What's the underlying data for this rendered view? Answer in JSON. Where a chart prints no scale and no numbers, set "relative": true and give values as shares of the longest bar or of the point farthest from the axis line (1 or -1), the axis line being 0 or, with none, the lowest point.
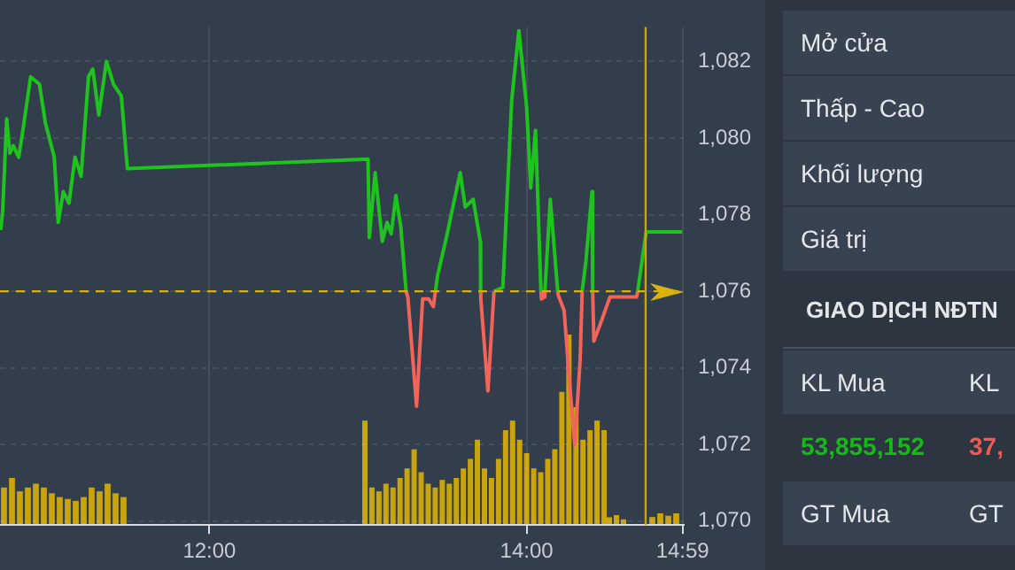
{
  "chart_data": [
    {
      "type": "line",
      "xlim": [
        10.68,
        14.99
      ],
      "ylim": [
        1069.9,
        1082.9
      ],
      "xticks": [
        {
          "value": 12,
          "label": "12:00"
        },
        {
          "value": 14,
          "label": "14:00"
        },
        {
          "value": 14.983,
          "label": "14:59"
        }
      ],
      "yticks": [
        {
          "value": 1070,
          "label": "1,070"
        },
        {
          "value": 1072,
          "label": "1,072"
        },
        {
          "value": 1074,
          "label": "1,074"
        },
        {
          "value": 1076,
          "label": "1,076"
        },
        {
          "value": 1078,
          "label": "1,078"
        },
        {
          "value": 1080,
          "label": "1,080"
        },
        {
          "value": 1082,
          "label": "1,082"
        }
      ],
      "grid": true,
      "legend": false,
      "marker": "none",
      "line_style": "solid",
      "ref_lines": [
        {
          "axis": "y",
          "value": 1076,
          "color": "#d9b20f",
          "line_style": "dashed"
        },
        {
          "axis": "x",
          "value": 14.75,
          "color": "#c9a418",
          "line_style": "solid"
        }
      ],
      "x": [
        10.685,
        10.697,
        10.722,
        10.742,
        10.764,
        10.798,
        10.828,
        10.873,
        10.929,
        10.966,
        11.022,
        11.047,
        11.079,
        11.115,
        11.153,
        11.191,
        11.238,
        11.265,
        11.303,
        11.351,
        11.396,
        11.445,
        11.483,
        13.0,
        13.008,
        13.045,
        13.09,
        13.12,
        13.146,
        13.176,
        13.206,
        13.24,
        13.251,
        13.306,
        13.344,
        13.382,
        13.412,
        13.425,
        13.438,
        13.494,
        13.581,
        13.613,
        13.663,
        13.708,
        13.71,
        13.711,
        13.756,
        13.794,
        13.85,
        13.906,
        13.951,
        14.0,
        14.026,
        14.056,
        14.09,
        14.093,
        14.112,
        14.115,
        14.149,
        14.196,
        14.199,
        14.236,
        14.273,
        14.303,
        14.337,
        14.35,
        14.374,
        14.412,
        14.416,
        14.424,
        14.469,
        14.525,
        14.693,
        14.7,
        14.753,
        14.98
      ],
      "series": [
        {
          "color": "#1ec31e",
          "values": [
            1077.6,
            1078.1,
            1080.5,
            1079.6,
            1079.8,
            1079.5,
            1080.3,
            1081.6,
            1081.4,
            1080.4,
            1079.5,
            1077.8,
            1078.6,
            1078.3,
            1079.5,
            1079.0,
            1081.6,
            1081.8,
            1080.6,
            1082.0,
            1081.4,
            1081.1,
            1079.2,
            1079.45,
            1077.4,
            1079.1,
            1077.3,
            1077.8,
            1077.5,
            1078.5,
            1077.7,
            1076,
            null,
            null,
            null,
            null,
            null,
            1076,
            1076.4,
            1077.4,
            1079.1,
            1078.2,
            1078.4,
            1077.3,
            1076,
            null,
            null,
            1076,
            1076.1,
            1081.0,
            1082.8,
            1080.8,
            1078.7,
            1080.2,
            1076,
            null,
            null,
            1076,
            1078.4,
            1076,
            null,
            null,
            null,
            null,
            null,
            1076,
            1076.8,
            1078.6,
            1076,
            null,
            null,
            null,
            null,
            1076,
            1077.55,
            1077.55
          ]
        },
        {
          "color": "#f2635a",
          "values": [
            null,
            null,
            null,
            null,
            null,
            null,
            null,
            null,
            null,
            null,
            null,
            null,
            null,
            null,
            null,
            null,
            null,
            null,
            null,
            null,
            null,
            null,
            null,
            null,
            null,
            null,
            null,
            null,
            null,
            null,
            null,
            1076,
            1075.85,
            1073.0,
            1075.8,
            1075.8,
            1075.6,
            1076,
            null,
            null,
            null,
            null,
            null,
            null,
            1076,
            1075.8,
            1073.4,
            1076,
            null,
            null,
            null,
            null,
            null,
            null,
            1076,
            1075.8,
            1075.85,
            1076,
            null,
            1076,
            1075.9,
            1075.5,
            1073.5,
            1072.0,
            1074.2,
            1076,
            null,
            null,
            1076,
            1074.7,
            1075.2,
            1075.85,
            1075.85,
            1076,
            null,
            null
          ]
        }
      ]
    },
    {
      "type": "bar",
      "relative": true,
      "tick_labels": false,
      "legend": false,
      "categories": [
        null,
        null,
        null,
        null,
        null,
        null,
        null,
        null,
        null,
        null,
        null,
        null,
        null,
        null,
        null,
        null
      ],
      "series": [
        {
          "color": "#c9a40c",
          "values": [
            0.8,
            1,
            0.72,
            0.8,
            0.88,
            0.8,
            0.68,
            0.6,
            0.56,
            0.52,
            0.6,
            0.8,
            0.72,
            0.88,
            0.68,
            0.6
          ]
        }
      ]
    },
    {
      "type": "bar",
      "relative": true,
      "tick_labels": false,
      "legend": false,
      "categories": [
        null,
        null,
        null,
        null,
        null,
        null,
        null,
        null,
        null,
        null,
        null,
        null,
        null,
        null,
        null,
        null,
        null,
        null,
        null,
        null,
        null,
        null,
        null,
        null,
        null,
        null,
        null,
        null,
        null,
        null,
        null,
        null,
        null,
        null,
        null
      ],
      "series": [
        {
          "color": "#c9a40c",
          "values": [
            0.55,
            0.2,
            0.18,
            0.22,
            0.2,
            0.25,
            0.3,
            0.4,
            0.28,
            0.22,
            0.2,
            0.24,
            0.22,
            0.25,
            0.3,
            0.35,
            0.45,
            0.3,
            0.25,
            0.35,
            0.5,
            0.55,
            0.45,
            0.38,
            0.3,
            0.28,
            0.35,
            0.4,
            0.7,
            1,
            0.62,
            0.45,
            0.5,
            0.55,
            0.5
          ]
        }
      ]
    },
    {
      "type": "bar",
      "relative": true,
      "tick_labels": false,
      "legend": false,
      "categories": [
        null,
        null,
        null
      ],
      "series": [
        {
          "color": "#c9a40c",
          "values": [
            0.8,
            1,
            0.6
          ]
        }
      ]
    },
    {
      "type": "bar",
      "relative": true,
      "tick_labels": false,
      "legend": false,
      "categories": [
        null,
        null,
        null,
        null
      ],
      "series": [
        {
          "color": "#c9a40c",
          "values": [
            0.7,
            1,
            0.8,
            1
          ]
        }
      ]
    },
    {
      "type": "other",
      "annotations": [
        "Mở cửa",
        "Thấp - Cao",
        "Khối lượng",
        "Giá trị",
        "GIAO DỊCH NĐTN",
        "KL Mua",
        "KL",
        "53,855,152",
        "37,",
        "GT Mua",
        "GT"
      ]
    }
  ]
}
